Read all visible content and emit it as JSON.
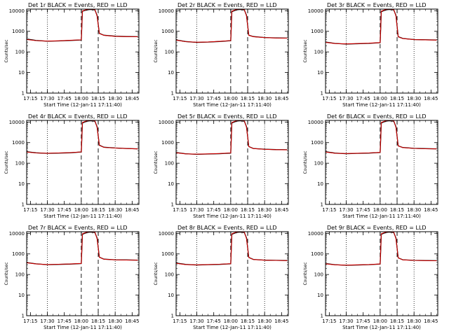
{
  "colors": {
    "background": "#ffffff",
    "axis": "#000000",
    "events_series": "#000000",
    "lld_series": "#cc0000"
  },
  "chart_data": [
    {
      "type": "line",
      "title": "Det 1r BLACK = Events, RED = LLD",
      "xlabel": "Start Time (12-Jan-11 17:11:40)",
      "ylabel": "Counts/sec",
      "yscale": "log",
      "ylim": [
        1,
        12000
      ],
      "xlim": [
        "17:11:40",
        "18:51:00"
      ],
      "x_ticks": [
        "17:15",
        "17:30",
        "17:45",
        "18:00",
        "18:15",
        "18:30",
        "18:45"
      ],
      "y_ticks": [
        "1",
        "10",
        "100",
        "1000",
        "10000"
      ],
      "grid": false,
      "dotted_vlines": [
        "17:30",
        "18:30"
      ],
      "dashed_vlines": [
        "18:00",
        "18:15"
      ],
      "x": [
        "17:12",
        "17:20",
        "17:30",
        "17:40",
        "17:50",
        "18:00",
        "18:01",
        "18:05",
        "18:08",
        "18:12",
        "18:14",
        "18:16",
        "18:20",
        "18:30",
        "18:40",
        "18:50"
      ],
      "series": [
        {
          "values": [
            420,
            360,
            330,
            340,
            360,
            380,
            9500,
            11000,
            11500,
            11000,
            6000,
            800,
            650,
            580,
            560,
            550
          ]
        },
        {
          "values": [
            400,
            355,
            335,
            345,
            365,
            385,
            9800,
            11500,
            12000,
            11500,
            5500,
            780,
            640,
            570,
            555,
            545
          ]
        }
      ]
    },
    {
      "type": "line",
      "title": "Det 2r BLACK = Events, RED = LLD",
      "xlabel": "Start Time (12-Jan-11 17:11:40)",
      "ylabel": "Counts/sec",
      "yscale": "log",
      "ylim": [
        1,
        12000
      ],
      "xlim": [
        "17:11:40",
        "18:51:00"
      ],
      "x_ticks": [
        "17:15",
        "17:30",
        "17:45",
        "18:00",
        "18:15",
        "18:30",
        "18:45"
      ],
      "y_ticks": [
        "1",
        "10",
        "100",
        "1000",
        "10000"
      ],
      "grid": false,
      "dotted_vlines": [
        "17:30",
        "18:30"
      ],
      "dashed_vlines": [
        "18:00",
        "18:15"
      ],
      "x": [
        "17:12",
        "17:20",
        "17:30",
        "17:40",
        "17:50",
        "18:00",
        "18:01",
        "18:05",
        "18:08",
        "18:12",
        "18:14",
        "18:16",
        "18:20",
        "18:30",
        "18:40",
        "18:50"
      ],
      "series": [
        {
          "values": [
            380,
            320,
            290,
            300,
            320,
            350,
            9000,
            11000,
            11500,
            11000,
            6000,
            650,
            560,
            500,
            480,
            470
          ]
        },
        {
          "values": [
            370,
            315,
            295,
            305,
            325,
            355,
            9500,
            11500,
            12000,
            11500,
            5500,
            640,
            550,
            495,
            475,
            465
          ]
        }
      ]
    },
    {
      "type": "line",
      "title": "Det 3r BLACK = Events, RED = LLD",
      "xlabel": "Start Time (12-Jan-11 17:11:40)",
      "ylabel": "Counts/sec",
      "yscale": "log",
      "ylim": [
        1,
        12000
      ],
      "xlim": [
        "17:11:40",
        "18:51:00"
      ],
      "x_ticks": [
        "17:15",
        "17:30",
        "17:45",
        "18:00",
        "18:15",
        "18:30",
        "18:45"
      ],
      "y_ticks": [
        "1",
        "10",
        "100",
        "1000",
        "10000"
      ],
      "grid": false,
      "dotted_vlines": [
        "17:30",
        "18:30"
      ],
      "dashed_vlines": [
        "18:00",
        "18:15"
      ],
      "x": [
        "17:12",
        "17:20",
        "17:30",
        "17:40",
        "17:50",
        "18:00",
        "18:01",
        "18:05",
        "18:08",
        "18:12",
        "18:14",
        "18:16",
        "18:20",
        "18:30",
        "18:40",
        "18:50"
      ],
      "series": [
        {
          "values": [
            300,
            260,
            240,
            250,
            260,
            280,
            9000,
            11000,
            11500,
            11000,
            6000,
            550,
            450,
            400,
            390,
            380
          ]
        },
        {
          "values": [
            290,
            255,
            245,
            255,
            265,
            285,
            9500,
            11500,
            12000,
            11500,
            5500,
            540,
            445,
            395,
            385,
            375
          ]
        }
      ]
    },
    {
      "type": "line",
      "title": "Det 4r BLACK = Events, RED = LLD",
      "xlabel": "Start Time (12-Jan-11 17:11:40)",
      "ylabel": "Counts/sec",
      "yscale": "log",
      "ylim": [
        1,
        12000
      ],
      "xlim": [
        "17:11:40",
        "18:51:00"
      ],
      "x_ticks": [
        "17:15",
        "17:30",
        "17:45",
        "18:00",
        "18:15",
        "18:30",
        "18:45"
      ],
      "y_ticks": [
        "1",
        "10",
        "100",
        "1000",
        "10000"
      ],
      "grid": false,
      "dotted_vlines": [
        "17:30",
        "18:30"
      ],
      "dashed_vlines": [
        "18:00",
        "18:15"
      ],
      "x": [
        "17:12",
        "17:20",
        "17:30",
        "17:40",
        "17:50",
        "18:00",
        "18:01",
        "18:05",
        "18:08",
        "18:12",
        "18:14",
        "18:16",
        "18:20",
        "18:30",
        "18:40",
        "18:50"
      ],
      "series": [
        {
          "values": [
            360,
            320,
            300,
            310,
            320,
            350,
            9000,
            11000,
            11500,
            11000,
            6000,
            750,
            600,
            550,
            520,
            500
          ]
        },
        {
          "values": [
            350,
            315,
            305,
            315,
            325,
            355,
            9500,
            11500,
            12000,
            11500,
            5500,
            740,
            590,
            545,
            515,
            495
          ]
        }
      ]
    },
    {
      "type": "line",
      "title": "Det 5r BLACK = Events, RED = LLD",
      "xlabel": "Start Time (12-Jan-11 17:11:40)",
      "ylabel": "Counts/sec",
      "yscale": "log",
      "ylim": [
        1,
        12000
      ],
      "xlim": [
        "17:11:40",
        "18:51:00"
      ],
      "x_ticks": [
        "17:15",
        "17:30",
        "17:45",
        "18:00",
        "18:15",
        "18:30",
        "18:45"
      ],
      "y_ticks": [
        "1",
        "10",
        "100",
        "1000",
        "10000"
      ],
      "grid": false,
      "dotted_vlines": [
        "17:30",
        "18:30"
      ],
      "dashed_vlines": [
        "18:00",
        "18:15"
      ],
      "x": [
        "17:12",
        "17:20",
        "17:30",
        "17:40",
        "17:50",
        "18:00",
        "18:01",
        "18:05",
        "18:08",
        "18:12",
        "18:14",
        "18:16",
        "18:20",
        "18:30",
        "18:40",
        "18:50"
      ],
      "series": [
        {
          "values": [
            330,
            290,
            270,
            280,
            290,
            310,
            9000,
            11000,
            11500,
            11000,
            6000,
            650,
            520,
            480,
            460,
            450
          ]
        },
        {
          "values": [
            320,
            285,
            275,
            285,
            295,
            315,
            9500,
            11500,
            12000,
            11500,
            5500,
            640,
            515,
            475,
            455,
            445
          ]
        }
      ]
    },
    {
      "type": "line",
      "title": "Det 6r BLACK = Events, RED = LLD",
      "xlabel": "Start Time (12-Jan-11 17:11:40)",
      "ylabel": "Counts/sec",
      "yscale": "log",
      "ylim": [
        1,
        12000
      ],
      "xlim": [
        "17:11:40",
        "18:51:00"
      ],
      "x_ticks": [
        "17:15",
        "17:30",
        "17:45",
        "18:00",
        "18:15",
        "18:30",
        "18:45"
      ],
      "y_ticks": [
        "1",
        "10",
        "100",
        "1000",
        "10000"
      ],
      "grid": false,
      "dotted_vlines": [
        "17:30",
        "18:30"
      ],
      "dashed_vlines": [
        "18:00",
        "18:15"
      ],
      "x": [
        "17:12",
        "17:20",
        "17:30",
        "17:40",
        "17:50",
        "18:00",
        "18:01",
        "18:05",
        "18:08",
        "18:12",
        "18:14",
        "18:16",
        "18:20",
        "18:30",
        "18:40",
        "18:50"
      ],
      "series": [
        {
          "values": [
            360,
            310,
            290,
            300,
            310,
            330,
            9000,
            11000,
            11500,
            11000,
            6000,
            700,
            580,
            530,
            510,
            500
          ]
        },
        {
          "values": [
            350,
            305,
            295,
            305,
            315,
            335,
            9500,
            11500,
            12000,
            11500,
            5500,
            690,
            575,
            525,
            505,
            495
          ]
        }
      ]
    },
    {
      "type": "line",
      "title": "Det 7r BLACK = Events, RED = LLD",
      "xlabel": "Start Time (12-Jan-11 17:11:40)",
      "ylabel": "Counts/sec",
      "yscale": "log",
      "ylim": [
        1,
        12000
      ],
      "xlim": [
        "17:11:40",
        "18:51:00"
      ],
      "x_ticks": [
        "17:15",
        "17:30",
        "17:45",
        "18:00",
        "18:15",
        "18:30",
        "18:45"
      ],
      "y_ticks": [
        "1",
        "10",
        "100",
        "1000",
        "10000"
      ],
      "grid": false,
      "dotted_vlines": [
        "17:30",
        "18:30"
      ],
      "dashed_vlines": [
        "18:00",
        "18:15"
      ],
      "x": [
        "17:12",
        "17:20",
        "17:30",
        "17:40",
        "17:50",
        "18:00",
        "18:01",
        "18:05",
        "18:08",
        "18:12",
        "18:14",
        "18:16",
        "18:20",
        "18:30",
        "18:40",
        "18:50"
      ],
      "series": [
        {
          "values": [
            380,
            330,
            300,
            310,
            320,
            340,
            9000,
            11000,
            11500,
            11000,
            6000,
            700,
            560,
            520,
            510,
            500
          ]
        },
        {
          "values": [
            370,
            325,
            305,
            315,
            325,
            345,
            9500,
            11500,
            12000,
            11500,
            5500,
            690,
            555,
            515,
            505,
            495
          ]
        }
      ]
    },
    {
      "type": "line",
      "title": "Det 8r BLACK = Events, RED = LLD",
      "xlabel": "Start Time (12-Jan-11 17:11:40)",
      "ylabel": "Counts/sec",
      "yscale": "log",
      "ylim": [
        1,
        12000
      ],
      "xlim": [
        "17:11:40",
        "18:51:00"
      ],
      "x_ticks": [
        "17:15",
        "17:30",
        "17:45",
        "18:00",
        "18:15",
        "18:30",
        "18:45"
      ],
      "y_ticks": [
        "1",
        "10",
        "100",
        "1000",
        "10000"
      ],
      "grid": false,
      "dotted_vlines": [
        "17:30",
        "18:30"
      ],
      "dashed_vlines": [
        "18:00",
        "18:15"
      ],
      "x": [
        "17:12",
        "17:20",
        "17:30",
        "17:40",
        "17:50",
        "18:00",
        "18:01",
        "18:05",
        "18:08",
        "18:12",
        "18:14",
        "18:16",
        "18:20",
        "18:30",
        "18:40",
        "18:50"
      ],
      "series": [
        {
          "values": [
            360,
            310,
            290,
            300,
            310,
            330,
            9000,
            11000,
            11500,
            11000,
            6000,
            680,
            540,
            500,
            490,
            480
          ]
        },
        {
          "values": [
            350,
            305,
            295,
            305,
            315,
            335,
            9500,
            11500,
            12000,
            11500,
            5500,
            670,
            535,
            495,
            485,
            475
          ]
        }
      ]
    },
    {
      "type": "line",
      "title": "Det 9r BLACK = Events, RED = LLD",
      "xlabel": "Start Time (12-Jan-11 17:11:40)",
      "ylabel": "Counts/sec",
      "yscale": "log",
      "ylim": [
        1,
        12000
      ],
      "xlim": [
        "17:11:40",
        "18:51:00"
      ],
      "x_ticks": [
        "17:15",
        "17:30",
        "17:45",
        "18:00",
        "18:15",
        "18:30",
        "18:45"
      ],
      "y_ticks": [
        "1",
        "10",
        "100",
        "1000",
        "10000"
      ],
      "grid": false,
      "dotted_vlines": [
        "17:30",
        "18:30"
      ],
      "dashed_vlines": [
        "18:00",
        "18:15"
      ],
      "x": [
        "17:12",
        "17:20",
        "17:30",
        "17:40",
        "17:50",
        "18:00",
        "18:01",
        "18:05",
        "18:08",
        "18:12",
        "18:14",
        "18:16",
        "18:20",
        "18:30",
        "18:40",
        "18:50"
      ],
      "series": [
        {
          "values": [
            340,
            300,
            280,
            290,
            300,
            320,
            9000,
            11000,
            11500,
            11000,
            6000,
            650,
            520,
            490,
            480,
            470
          ]
        },
        {
          "values": [
            330,
            295,
            285,
            295,
            305,
            325,
            9500,
            11500,
            12000,
            11500,
            5500,
            640,
            515,
            485,
            475,
            465
          ]
        }
      ]
    }
  ]
}
